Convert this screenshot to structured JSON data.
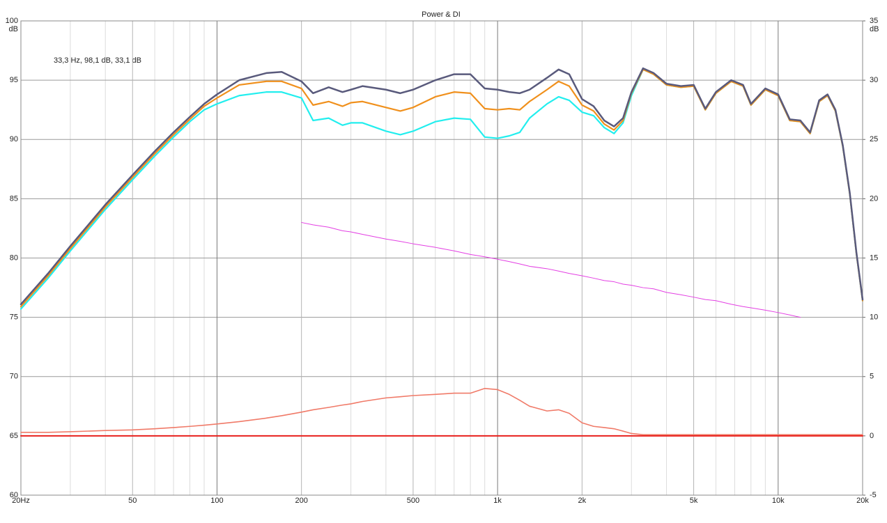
{
  "chart_data": {
    "type": "line",
    "title": "Power & DI",
    "annotation": "33,3 Hz, 98,1 dB, 33,1 dB",
    "ylabel": "dB",
    "y2label": "dB",
    "log_x": true,
    "grid": true,
    "xlim": [
      20,
      20000
    ],
    "ylim": [
      60,
      100
    ],
    "y2lim": [
      -5,
      35
    ],
    "xticks": [
      {
        "value": 20,
        "label": "20Hz"
      },
      50,
      100,
      200,
      500,
      {
        "value": 1000,
        "label": "1k"
      },
      {
        "value": 2000,
        "label": "2k"
      },
      {
        "value": 5000,
        "label": "5k"
      },
      {
        "value": 10000,
        "label": "10k"
      },
      {
        "value": 20000,
        "label": "20k"
      }
    ],
    "xminor": [
      30,
      40,
      60,
      70,
      80,
      90,
      300,
      400,
      600,
      700,
      800,
      900,
      3000,
      4000,
      6000,
      7000,
      8000,
      9000
    ],
    "yticks": [
      60,
      65,
      70,
      75,
      80,
      85,
      90,
      95,
      100
    ],
    "y2ticks": [
      -5,
      0,
      5,
      10,
      15,
      20,
      25,
      30,
      35
    ],
    "x": [
      20,
      25,
      30,
      40,
      50,
      60,
      70,
      80,
      90,
      100,
      120,
      150,
      170,
      200,
      220,
      250,
      280,
      300,
      330,
      400,
      450,
      500,
      600,
      700,
      800,
      900,
      1000,
      1100,
      1200,
      1300,
      1500,
      1650,
      1800,
      2000,
      2200,
      2400,
      2600,
      2800,
      3000,
      3300,
      3600,
      4000,
      4500,
      5000,
      5500,
      6000,
      6800,
      7500,
      8000,
      9000,
      10000,
      11000,
      12000,
      13000,
      14000,
      15000,
      16000,
      17000,
      18000,
      19000,
      20000
    ],
    "series": [
      {
        "color": "#e8201c",
        "axis": "y2",
        "width": 2,
        "values": [
          0,
          0,
          0,
          0,
          0,
          0,
          0,
          0,
          0,
          0,
          0,
          0,
          0,
          0,
          0,
          0,
          0,
          0,
          0,
          0,
          0,
          0,
          0,
          0,
          0,
          0,
          0,
          0,
          0,
          0,
          0,
          0,
          0,
          0,
          0,
          0,
          0,
          0,
          0,
          0,
          0,
          0,
          0,
          0,
          0,
          0,
          0,
          0,
          0,
          0,
          0,
          0,
          0,
          0,
          0,
          0,
          0,
          0,
          0,
          0,
          0
        ]
      },
      {
        "color": "#f07a68",
        "axis": "y2",
        "width": 1.6,
        "values": [
          0.3,
          0.3,
          0.35,
          0.45,
          0.5,
          0.6,
          0.7,
          0.8,
          0.9,
          1.0,
          1.2,
          1.5,
          1.7,
          2.0,
          2.2,
          2.4,
          2.6,
          2.7,
          2.9,
          3.2,
          3.3,
          3.4,
          3.5,
          3.6,
          3.6,
          4.0,
          3.9,
          3.5,
          3.0,
          2.5,
          2.1,
          2.2,
          1.9,
          1.1,
          0.8,
          0.7,
          0.6,
          0.4,
          0.2,
          0.1,
          0.1,
          0.1,
          0.1,
          0.1,
          0.1,
          0.1,
          0.1,
          0.1,
          0.1,
          0.1,
          0.1,
          0.1,
          0.1,
          0.1,
          0.1,
          0.1,
          0.1,
          0.1,
          0.1,
          0.1,
          0.1
        ]
      },
      {
        "color": "#e33fe3",
        "width": 1,
        "values": [
          null,
          null,
          null,
          null,
          null,
          null,
          null,
          null,
          null,
          null,
          null,
          null,
          null,
          83.0,
          82.8,
          82.6,
          82.3,
          82.2,
          82.0,
          81.6,
          81.4,
          81.2,
          80.9,
          80.6,
          80.3,
          80.1,
          79.9,
          79.7,
          79.5,
          79.3,
          79.1,
          78.9,
          78.7,
          78.5,
          78.3,
          78.1,
          78.0,
          77.8,
          77.7,
          77.5,
          77.4,
          77.1,
          76.9,
          76.7,
          76.5,
          76.4,
          76.1,
          75.9,
          75.8,
          75.6,
          75.4,
          75.2,
          75.0,
          null,
          null,
          null,
          null,
          null,
          null,
          null,
          null
        ]
      },
      {
        "color": "#22eeee",
        "width": 2.2,
        "values": [
          75.7,
          78.3,
          80.6,
          84.1,
          86.6,
          88.6,
          90.2,
          91.5,
          92.5,
          93.0,
          93.7,
          94.0,
          94.0,
          93.5,
          91.6,
          91.8,
          91.2,
          91.4,
          91.4,
          90.7,
          90.4,
          90.7,
          91.5,
          91.8,
          91.7,
          90.2,
          90.1,
          90.3,
          90.6,
          91.8,
          93.0,
          93.6,
          93.3,
          92.3,
          92.0,
          91.0,
          90.5,
          91.4,
          93.7,
          95.9,
          95.5,
          94.6,
          94.4,
          94.5,
          92.5,
          93.9,
          94.9,
          94.5,
          92.9,
          94.2,
          93.7,
          91.6,
          91.5,
          90.5,
          93.2,
          93.7,
          92.4,
          89.4,
          85.4,
          80.4,
          76.4
        ]
      },
      {
        "color": "#f0901c",
        "width": 2.2,
        "values": [
          75.9,
          78.5,
          80.8,
          84.3,
          86.8,
          88.8,
          90.4,
          91.7,
          92.8,
          93.5,
          94.6,
          94.9,
          94.9,
          94.3,
          92.9,
          93.2,
          92.8,
          93.1,
          93.2,
          92.7,
          92.4,
          92.7,
          93.6,
          94.0,
          93.9,
          92.6,
          92.5,
          92.6,
          92.5,
          93.2,
          94.2,
          94.9,
          94.5,
          92.9,
          92.4,
          91.3,
          90.8,
          91.6,
          93.9,
          95.9,
          95.5,
          94.6,
          94.4,
          94.5,
          92.5,
          93.9,
          94.9,
          94.5,
          92.9,
          94.2,
          93.7,
          91.6,
          91.5,
          90.5,
          93.2,
          93.7,
          92.4,
          89.4,
          85.4,
          80.4,
          76.4
        ]
      },
      {
        "color": "#595a7c",
        "width": 2.5,
        "values": [
          76.1,
          78.7,
          81.0,
          84.5,
          87.0,
          89.0,
          90.6,
          91.9,
          93.0,
          93.8,
          95.0,
          95.6,
          95.7,
          94.9,
          93.9,
          94.4,
          94.0,
          94.2,
          94.5,
          94.2,
          93.9,
          94.2,
          95.0,
          95.5,
          95.5,
          94.3,
          94.2,
          94.0,
          93.9,
          94.2,
          95.2,
          95.9,
          95.5,
          93.4,
          92.8,
          91.6,
          91.1,
          91.8,
          94.0,
          96.0,
          95.6,
          94.7,
          94.5,
          94.6,
          92.6,
          94.0,
          95.0,
          94.6,
          93.0,
          94.3,
          93.8,
          91.7,
          91.6,
          90.6,
          93.3,
          93.8,
          92.5,
          89.5,
          85.5,
          80.5,
          76.5
        ]
      }
    ]
  }
}
